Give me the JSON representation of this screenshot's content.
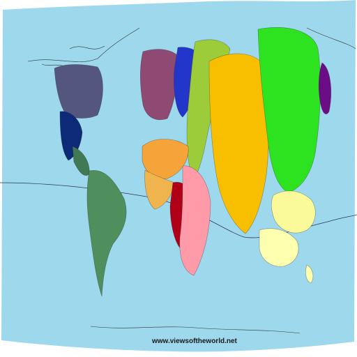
{
  "map": {
    "credit": "www.viewsoftheworld.net",
    "colors": {
      "ocean": "#9dd8ec",
      "north_america": "#55567f",
      "usa": "#0d2a78",
      "central_america": "#3f7a55",
      "south_america": "#4f8f5e",
      "europe_west": "#8e4a72",
      "europe_north": "#6a3a7a",
      "europe_east": "#2237c9",
      "middle_east": "#9ccc3a",
      "north_africa": "#f5a43a",
      "west_africa": "#f0b44f",
      "central_africa": "#b00018",
      "east_africa": "#ff9aa8",
      "south_asia": "#f8bf00",
      "china": "#2de21e",
      "japan": "#6b0e86",
      "southeast_asia": "#fafa9a",
      "oceania": "#ffffb0"
    }
  }
}
